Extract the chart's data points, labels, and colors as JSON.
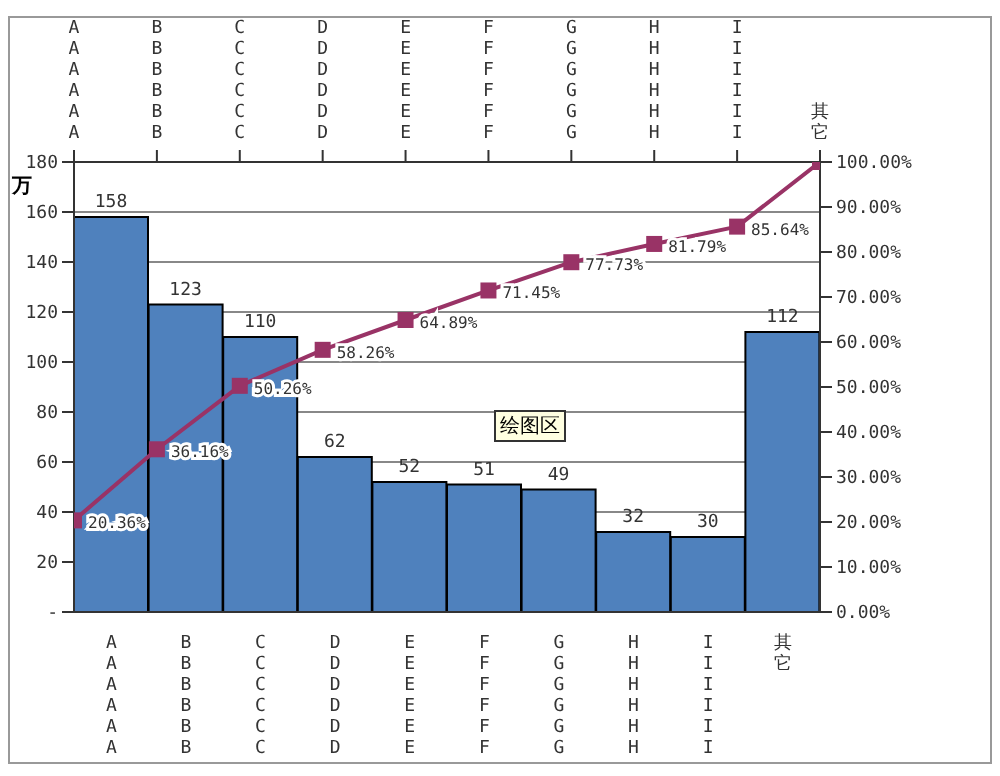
{
  "chart_data": {
    "type": "bar",
    "categories": [
      "AAAAAA",
      "BBBBBB",
      "CCCCCC",
      "DDDDDD",
      "EEEEEE",
      "FFFFFF",
      "GGGGGG",
      "HHHHHH",
      "IIIIII",
      "其它"
    ],
    "ylabel": "万",
    "ylim": [
      0,
      180
    ],
    "yticks": [
      {
        "value": 0,
        "label": "-"
      },
      20,
      40,
      60,
      80,
      100,
      120,
      140,
      160,
      180
    ],
    "y2lim": [
      0,
      100
    ],
    "y2ticks": [
      {
        "value": 0,
        "label": "0.00%"
      },
      {
        "value": 10,
        "label": "10.00%"
      },
      {
        "value": 20,
        "label": "20.00%"
      },
      {
        "value": 30,
        "label": "30.00%"
      },
      {
        "value": 40,
        "label": "40.00%"
      },
      {
        "value": 50,
        "label": "50.00%"
      },
      {
        "value": 60,
        "label": "60.00%"
      },
      {
        "value": 70,
        "label": "70.00%"
      },
      {
        "value": 80,
        "label": "80.00%"
      },
      {
        "value": 90,
        "label": "90.00%"
      },
      {
        "value": 100,
        "label": "100.00%"
      }
    ],
    "series": [
      {
        "color": "#4f81bd",
        "values": [
          158,
          123,
          110,
          62,
          52,
          51,
          49,
          32,
          30,
          112
        ],
        "value_labels": [
          "158",
          "123",
          "110",
          "62",
          "52",
          "51",
          "49",
          "32",
          "30",
          "112"
        ]
      },
      {
        "type": "line",
        "axis": "y2",
        "color": "#993366",
        "x": [
          "AAAAAA",
          "BBBBBB",
          "CCCCCC",
          "DDDDDD",
          "EEEEEE",
          "FFFFFF",
          "GGGGGG",
          "HHHHHH",
          "IIIIII",
          "其它"
        ],
        "values": [
          20.36,
          36.16,
          50.26,
          58.26,
          64.89,
          71.45,
          77.73,
          81.79,
          85.64,
          100
        ],
        "value_labels": [
          "20.36%",
          "36.16%",
          "50.26%",
          "58.26%",
          "64.89%",
          "71.45%",
          "77.73%",
          "81.79%",
          "85.64%",
          null
        ]
      }
    ],
    "annotations": [
      "绘图区"
    ],
    "grid": "y",
    "marker": "square"
  }
}
